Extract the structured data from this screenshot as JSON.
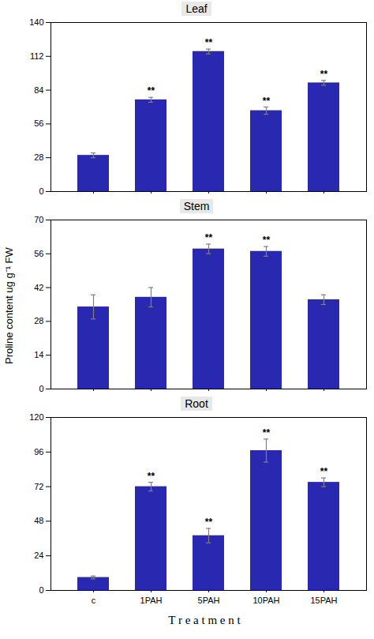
{
  "chart_data": [
    {
      "type": "bar",
      "title": "Leaf",
      "categories": [
        "c",
        "1PAH",
        "5PAH",
        "10PAH",
        "15PAH"
      ],
      "values": [
        30,
        76,
        116,
        67,
        90
      ],
      "errors": [
        2,
        2,
        2,
        3,
        2
      ],
      "annotations": [
        {
          "category": "1PAH",
          "text": "**"
        },
        {
          "category": "5PAH",
          "text": "**"
        },
        {
          "category": "10PAH",
          "text": "**"
        },
        {
          "category": "15PAH",
          "text": "**"
        }
      ],
      "color": "#2828B0",
      "ylim": [
        0,
        140
      ],
      "yticks": [
        0,
        28,
        56,
        84,
        112,
        140
      ],
      "grid": false,
      "tick_labels": "y"
    },
    {
      "type": "bar",
      "title": "Stem",
      "categories": [
        "c",
        "1PAH",
        "5PAH",
        "10PAH",
        "15PAH"
      ],
      "values": [
        34,
        38,
        58,
        57,
        37
      ],
      "errors": [
        5,
        4,
        2,
        2,
        2
      ],
      "annotations": [
        {
          "category": "5PAH",
          "text": "**"
        },
        {
          "category": "10PAH",
          "text": "**"
        }
      ],
      "color": "#2828B0",
      "ylabel": "Proline content ug g⁻¹ FW",
      "ylim": [
        0,
        70
      ],
      "yticks": [
        0,
        14,
        28,
        42,
        56,
        70
      ],
      "grid": false,
      "tick_labels": "y"
    },
    {
      "type": "bar",
      "title": "Root",
      "categories": [
        "c",
        "1PAH",
        "5PAH",
        "10PAH",
        "15PAH"
      ],
      "values": [
        9,
        72,
        38,
        97,
        75
      ],
      "errors": [
        1,
        3,
        5,
        8,
        3
      ],
      "annotations": [
        {
          "category": "1PAH",
          "text": "**"
        },
        {
          "category": "5PAH",
          "text": "**"
        },
        {
          "category": "10PAH",
          "text": "**"
        },
        {
          "category": "15PAH",
          "text": "**"
        }
      ],
      "color": "#2828B0",
      "xlabel": "T r e a t m e n t",
      "ylim": [
        0,
        120
      ],
      "yticks": [
        0,
        24,
        48,
        72,
        96,
        120
      ],
      "grid": false
    }
  ]
}
